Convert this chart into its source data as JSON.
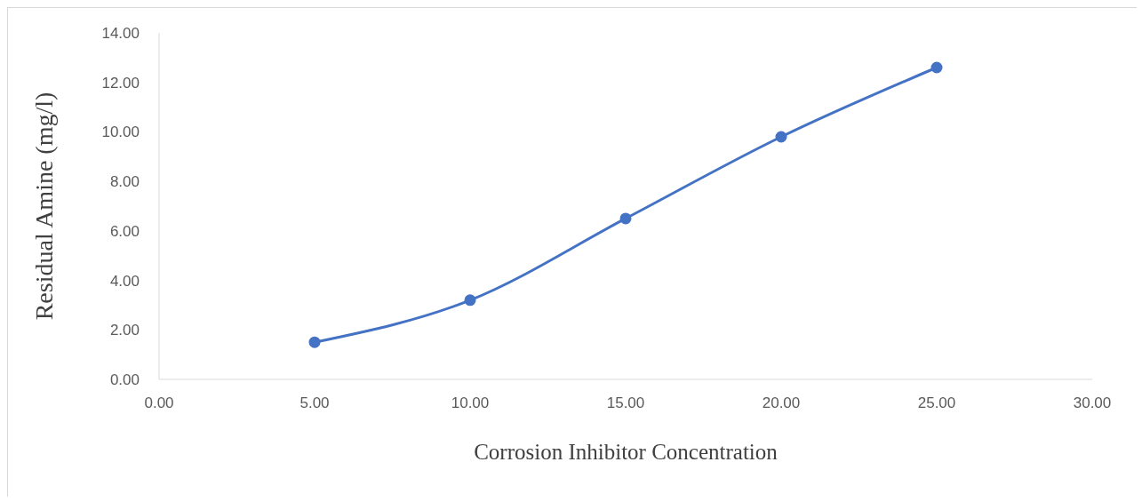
{
  "chart_data": {
    "type": "line",
    "xlabel": "Corrosion Inhibitor Concentration",
    "ylabel": "Residual Amine (mg/l)",
    "x": [
      5,
      10,
      15,
      20,
      25
    ],
    "series": [
      {
        "color": "#4472c4",
        "values": [
          1.5,
          3.2,
          6.5,
          9.8,
          12.6
        ]
      }
    ],
    "xlim": [
      0,
      30
    ],
    "xticks": [
      {
        "value": 0,
        "label": "0.00"
      },
      {
        "value": 5,
        "label": "5.00"
      },
      {
        "value": 10,
        "label": "10.00"
      },
      {
        "value": 15,
        "label": "15.00"
      },
      {
        "value": 20,
        "label": "20.00"
      },
      {
        "value": 25,
        "label": "25.00"
      },
      {
        "value": 30,
        "label": "30.00"
      }
    ],
    "ylim": [
      0,
      14
    ],
    "yticks": [
      {
        "value": 0,
        "label": "0.00"
      },
      {
        "value": 2,
        "label": "2.00"
      },
      {
        "value": 4,
        "label": "4.00"
      },
      {
        "value": 6,
        "label": "6.00"
      },
      {
        "value": 8,
        "label": "8.00"
      },
      {
        "value": 10,
        "label": "10.00"
      },
      {
        "value": 12,
        "label": "12.00"
      },
      {
        "value": 14,
        "label": "14.00"
      }
    ],
    "grid": false,
    "legend": false,
    "marker": "circle",
    "line_style": "solid"
  }
}
